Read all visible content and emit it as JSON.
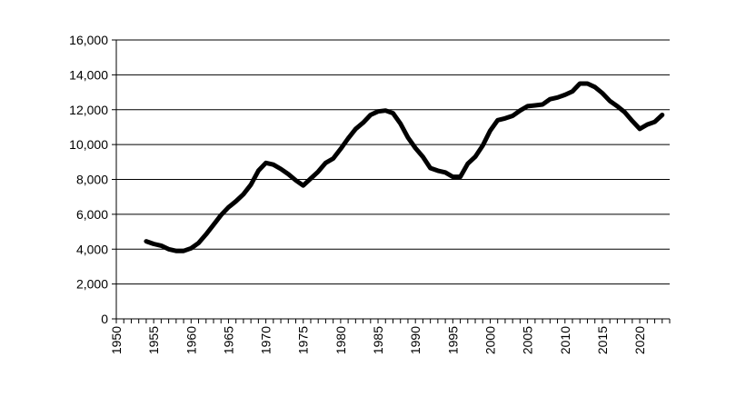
{
  "chart_data": {
    "type": "line",
    "title": "",
    "xlabel": "",
    "ylabel": "",
    "xlim": [
      1950,
      2024
    ],
    "ylim": [
      0,
      16000
    ],
    "grid": "horizontal",
    "legend": "none",
    "line_color": "#000000",
    "y_ticks": [
      0,
      2000,
      4000,
      6000,
      8000,
      10000,
      12000,
      14000,
      16000
    ],
    "y_tick_labels": [
      "0",
      "2,000",
      "4,000",
      "6,000",
      "8,000",
      "10,000",
      "12,000",
      "14,000",
      "16,000"
    ],
    "x_ticks": [
      1950,
      1955,
      1960,
      1965,
      1970,
      1975,
      1980,
      1985,
      1990,
      1995,
      2000,
      2005,
      2010,
      2015,
      2020
    ],
    "x_tick_labels": [
      "1950",
      "1955",
      "1960",
      "1965",
      "1970",
      "1975",
      "1980",
      "1985",
      "1990",
      "1995",
      "2000",
      "2005",
      "2010",
      "2015",
      "2020"
    ],
    "series": [
      {
        "x": [
          1954,
          1955,
          1956,
          1957,
          1958,
          1959,
          1960,
          1961,
          1962,
          1963,
          1964,
          1965,
          1966,
          1967,
          1968,
          1969,
          1970,
          1971,
          1972,
          1973,
          1974,
          1975,
          1976,
          1977,
          1978,
          1979,
          1980,
          1981,
          1982,
          1983,
          1984,
          1985,
          1986,
          1987,
          1988,
          1989,
          1990,
          1991,
          1992,
          1993,
          1994,
          1995,
          1996,
          1997,
          1998,
          1999,
          2000,
          2001,
          2002,
          2003,
          2004,
          2005,
          2006,
          2007,
          2008,
          2009,
          2010,
          2011,
          2012,
          2013,
          2014,
          2015,
          2016,
          2017,
          2018,
          2019,
          2020,
          2021,
          2022,
          2023
        ],
        "y": [
          4450,
          4300,
          4200,
          4000,
          3900,
          3900,
          4050,
          4350,
          4850,
          5400,
          5950,
          6400,
          6750,
          7150,
          7700,
          8500,
          8950,
          8850,
          8600,
          8300,
          7950,
          7650,
          8050,
          8450,
          8950,
          9200,
          9750,
          10350,
          10900,
          11250,
          11700,
          11900,
          11950,
          11800,
          11200,
          10400,
          9800,
          9300,
          8650,
          8500,
          8400,
          8150,
          8150,
          8900,
          9300,
          9950,
          10800,
          11400,
          11500,
          11650,
          11950,
          12200,
          12250,
          12300,
          12600,
          12700,
          12850,
          13050,
          13500,
          13500,
          13300,
          12950,
          12500,
          12200,
          11850,
          11350,
          10900,
          11150,
          11300,
          11700
        ]
      }
    ]
  }
}
